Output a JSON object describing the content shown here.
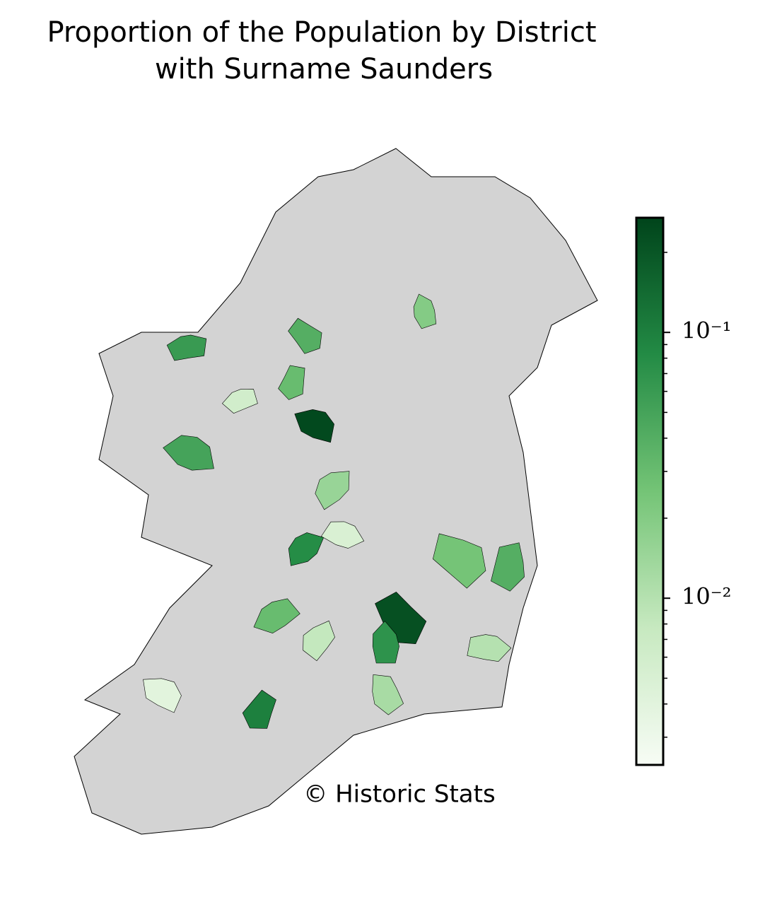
{
  "chart_data": {
    "type": "choropleth",
    "title_lines": [
      "Proportion of the Population by District",
      "with Surname Saunders"
    ],
    "credit": "© Historic Stats",
    "categories": [
      null,
      null,
      null,
      null,
      null,
      null,
      null,
      null,
      null,
      null,
      null,
      null,
      null,
      null,
      null,
      null,
      null,
      null,
      null,
      null
    ],
    "values": [
      0.25,
      0.22,
      0.07,
      0.1,
      0.08,
      0.06,
      0.05,
      0.04,
      0.02,
      0.03,
      0.015,
      0.006,
      0.005,
      0.025,
      0.012,
      0.04,
      0.008,
      0.03,
      0.01,
      0.004
    ],
    "ylim": [
      0.00236,
      0.27
    ],
    "log_scale": true,
    "yticks": [
      {
        "value": 0.1,
        "label": "10⁻¹"
      },
      {
        "value": 0.01,
        "label": "10⁻²"
      }
    ],
    "minor_yticks": [
      0.003,
      0.004,
      0.005,
      0.006,
      0.007,
      0.008,
      0.009,
      0.02,
      0.03,
      0.04,
      0.05,
      0.06,
      0.07,
      0.08,
      0.09,
      0.2
    ],
    "colormap": [
      "#f7fcf5",
      "#c7e9c0",
      "#74c476",
      "#238b45",
      "#00441b"
    ],
    "no_data_color": "#d3d3d3"
  }
}
